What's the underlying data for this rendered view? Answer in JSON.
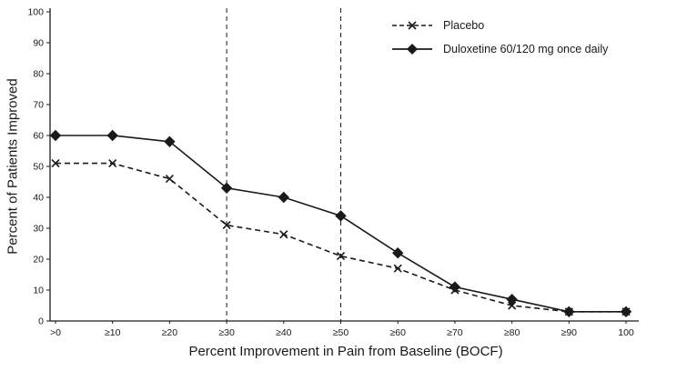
{
  "chart_data": {
    "type": "line",
    "title": "",
    "xlabel": "Percent Improvement in Pain from Baseline (BOCF)",
    "ylabel": "Percent of Patients Improved",
    "categories": [
      ">0",
      "≥10",
      "≥20",
      "≥30",
      "≥40",
      "≥50",
      "≥60",
      "≥70",
      "≥80",
      "≥90",
      "100"
    ],
    "ylim": [
      0,
      100
    ],
    "ytick_step": 10,
    "grid": false,
    "legend_position": "top-right",
    "reference_lines_x": [
      "≥30",
      "≥50"
    ],
    "series": [
      {
        "name": "Placebo",
        "marker": "x",
        "line": "dashed",
        "values": [
          51,
          51,
          46,
          31,
          28,
          21,
          17,
          10,
          5,
          3,
          3
        ]
      },
      {
        "name": "Duloxetine 60/120 mg once daily",
        "marker": "diamond",
        "line": "solid",
        "values": [
          60,
          60,
          58,
          43,
          40,
          34,
          22,
          11,
          7,
          3,
          3
        ]
      }
    ]
  },
  "colors": {
    "ink": "#1a1a1a",
    "background": "#ffffff"
  }
}
